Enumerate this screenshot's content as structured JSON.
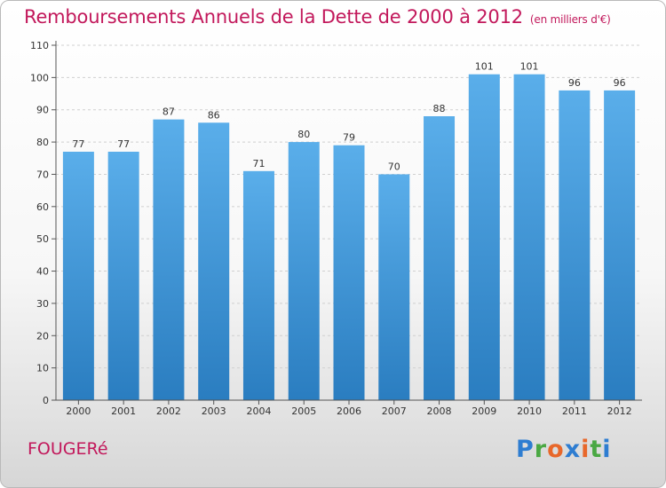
{
  "title": "Remboursements Annuels de la Dette de 2000 à 2012",
  "unit": "(en milliers d'€)",
  "commune": "FOUGERé",
  "logo": {
    "letters": [
      "P",
      "r",
      "o",
      "x",
      "i",
      "t",
      "i"
    ],
    "colors": [
      "#2e7dd1",
      "#4aa843",
      "#e8672a",
      "#2e7dd1",
      "#e8672a",
      "#4aa843",
      "#2e7dd1"
    ]
  },
  "colors": {
    "title": "#c2185b",
    "bar_light": "#5aaeea",
    "bar_dark": "#2a7dc0"
  },
  "chart_data": {
    "type": "bar",
    "categories": [
      "2000",
      "2001",
      "2002",
      "2003",
      "2004",
      "2005",
      "2006",
      "2007",
      "2008",
      "2009",
      "2010",
      "2011",
      "2012"
    ],
    "values": [
      77,
      77,
      87,
      86,
      71,
      80,
      79,
      70,
      88,
      101,
      101,
      96,
      96
    ],
    "ylim": [
      0,
      110
    ],
    "yticks": [
      0,
      10,
      20,
      30,
      40,
      50,
      60,
      70,
      80,
      90,
      100,
      110
    ],
    "grid": "horizontal-dashed",
    "data_labels": true
  }
}
